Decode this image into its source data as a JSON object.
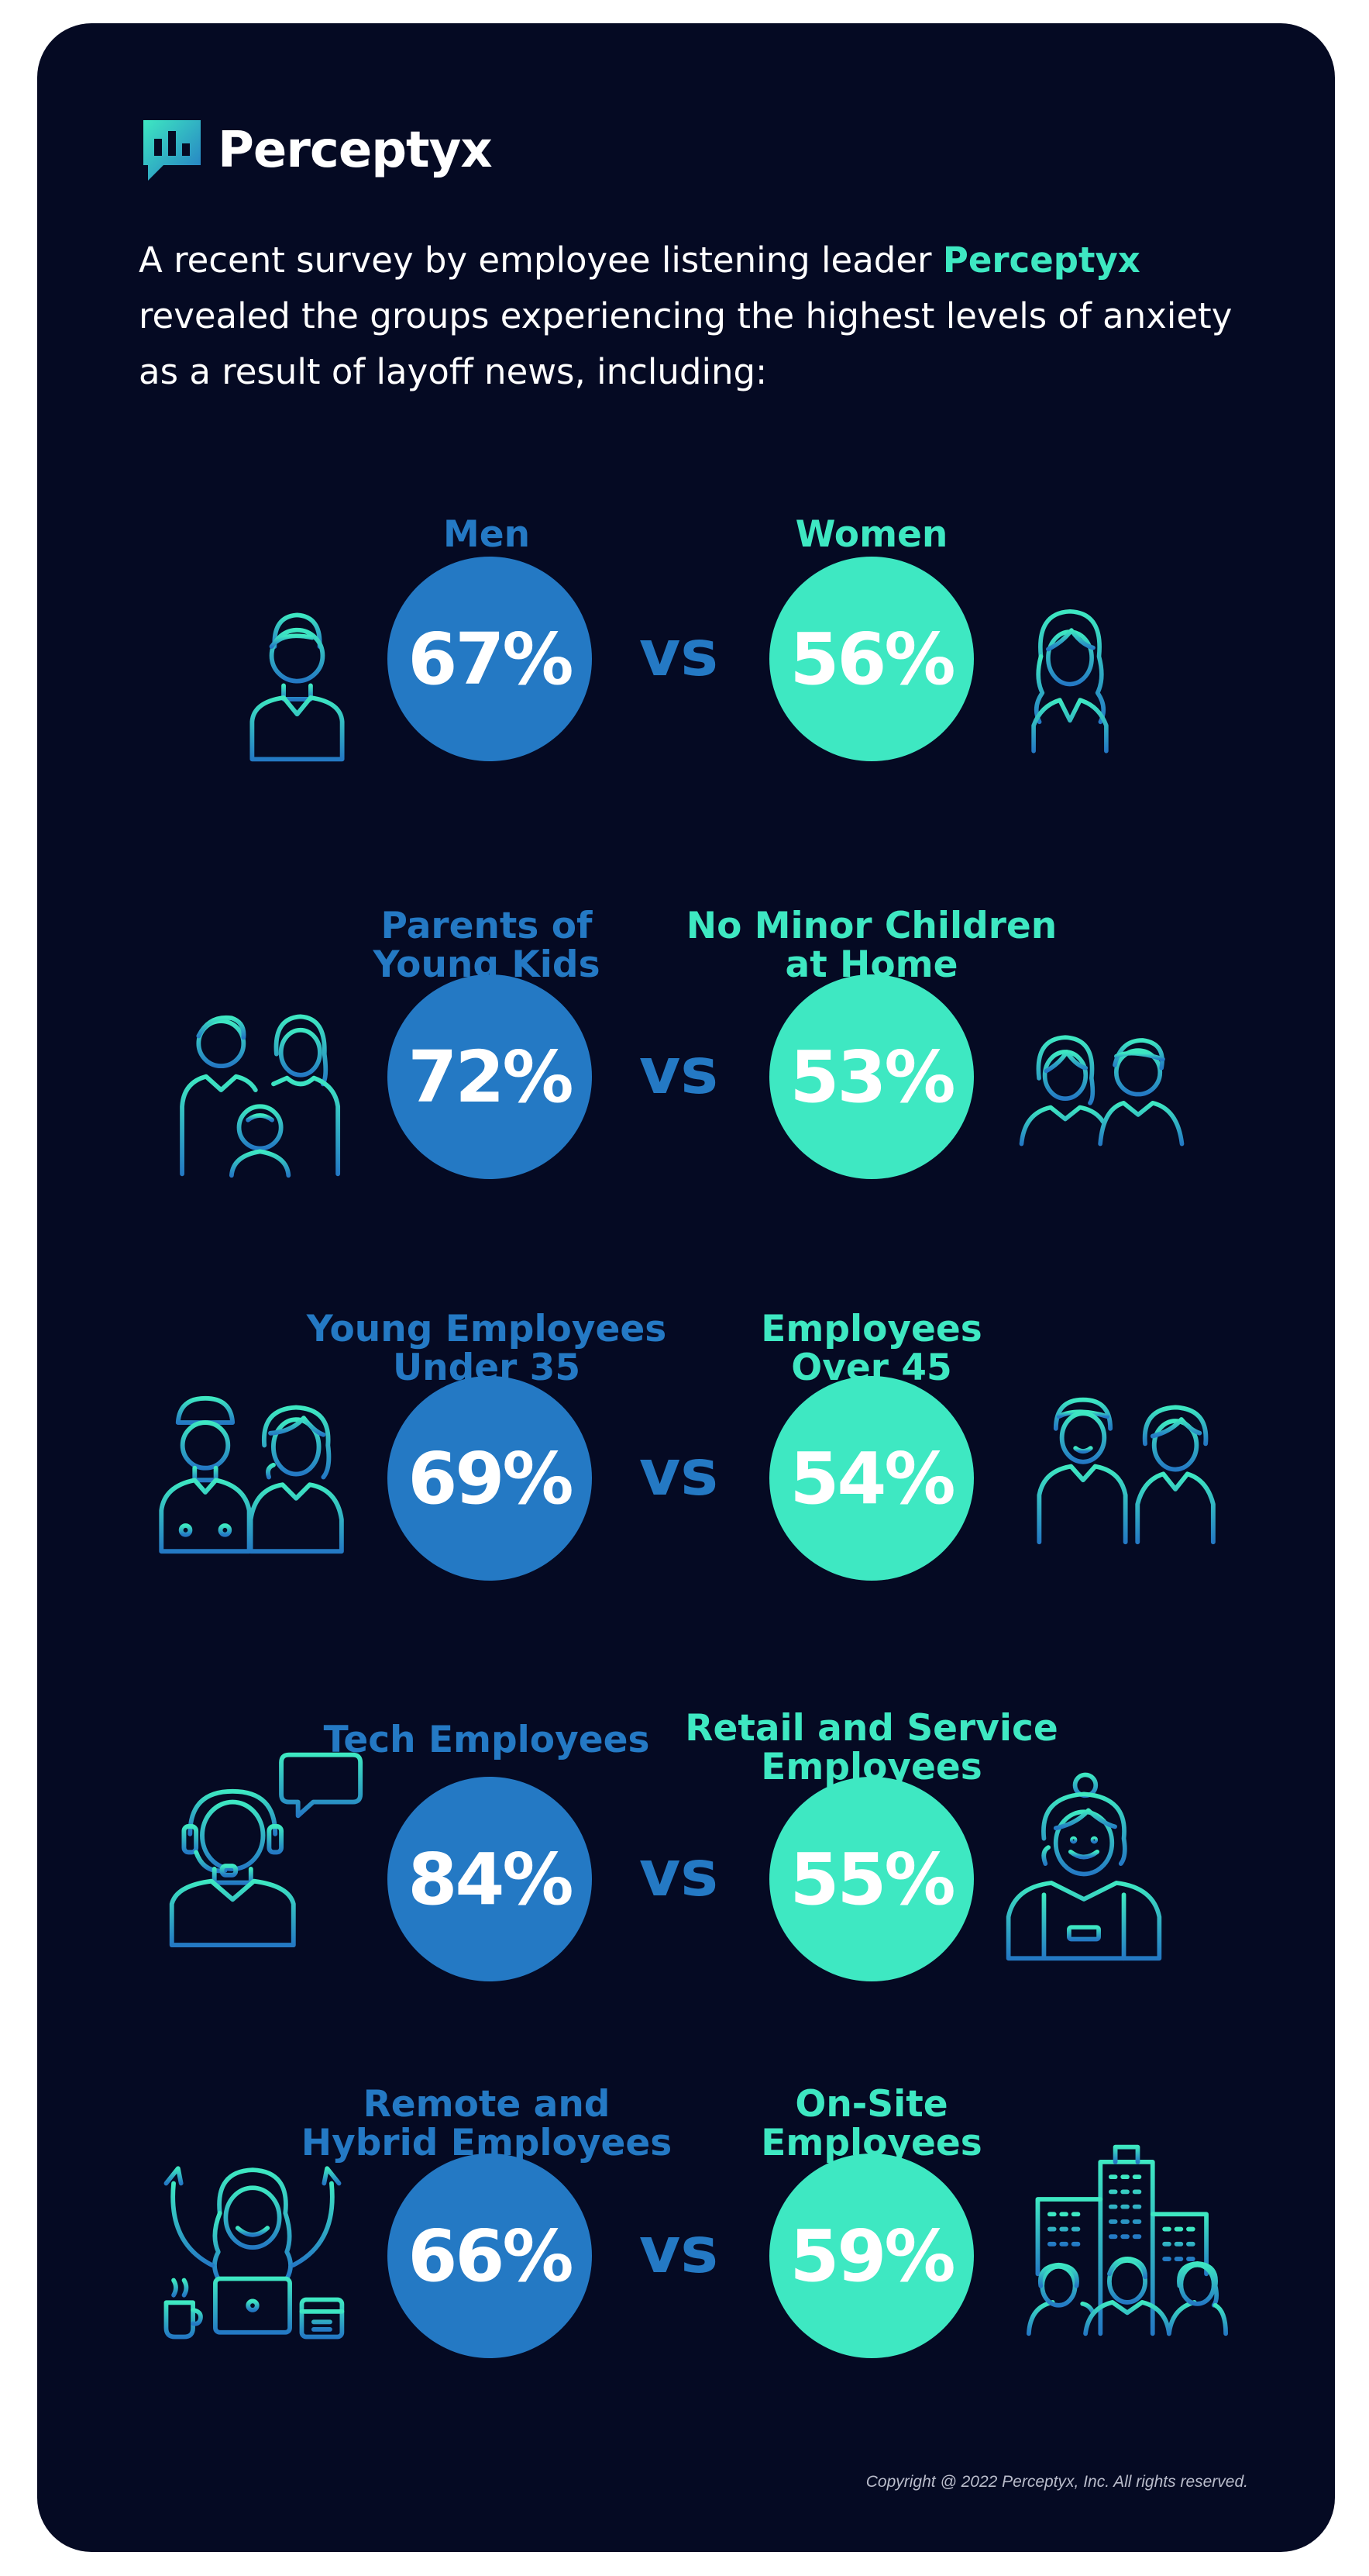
{
  "brand": {
    "name": "Perceptyx"
  },
  "intro": {
    "before": "A recent survey by employee listening leader ",
    "highlight": "Perceptyx",
    "after": " revealed the groups experiencing the highest levels of anxiety as a result of layoff news, including:"
  },
  "vs_label": "vs",
  "comparisons": [
    {
      "left_label": [
        "Men"
      ],
      "left_value": "67%",
      "right_label": [
        "Women"
      ],
      "right_value": "56%",
      "left_icon": "man-icon",
      "right_icon": "woman-icon"
    },
    {
      "left_label": [
        "Parents of",
        "Young Kids"
      ],
      "left_value": "72%",
      "right_label": [
        "No Minor Children",
        "at Home"
      ],
      "right_value": "53%",
      "left_icon": "family-icon",
      "right_icon": "couple-icon"
    },
    {
      "left_label": [
        "Young Employees",
        "Under 35"
      ],
      "left_value": "69%",
      "right_label": [
        "Employees",
        "Over 45"
      ],
      "right_value": "54%",
      "left_icon": "young-employees-icon",
      "right_icon": "older-employees-icon"
    },
    {
      "left_label": [
        "Tech Employees"
      ],
      "left_value": "84%",
      "right_label": [
        "Retail and Service",
        "Employees"
      ],
      "right_value": "55%",
      "left_icon": "headset-support-icon",
      "right_icon": "retail-worker-icon"
    },
    {
      "left_label": [
        "Remote and",
        "Hybrid Employees"
      ],
      "left_value": "66%",
      "right_label": [
        "On-Site",
        "Employees"
      ],
      "right_value": "59%",
      "left_icon": "remote-worker-icon",
      "right_icon": "office-building-icon"
    }
  ],
  "colors": {
    "background": "#050a23",
    "left_accent": "#2479c4",
    "right_accent": "#3ee8c2"
  },
  "copyright": "Copyright @ 2022  Perceptyx, Inc. All rights reserved."
}
